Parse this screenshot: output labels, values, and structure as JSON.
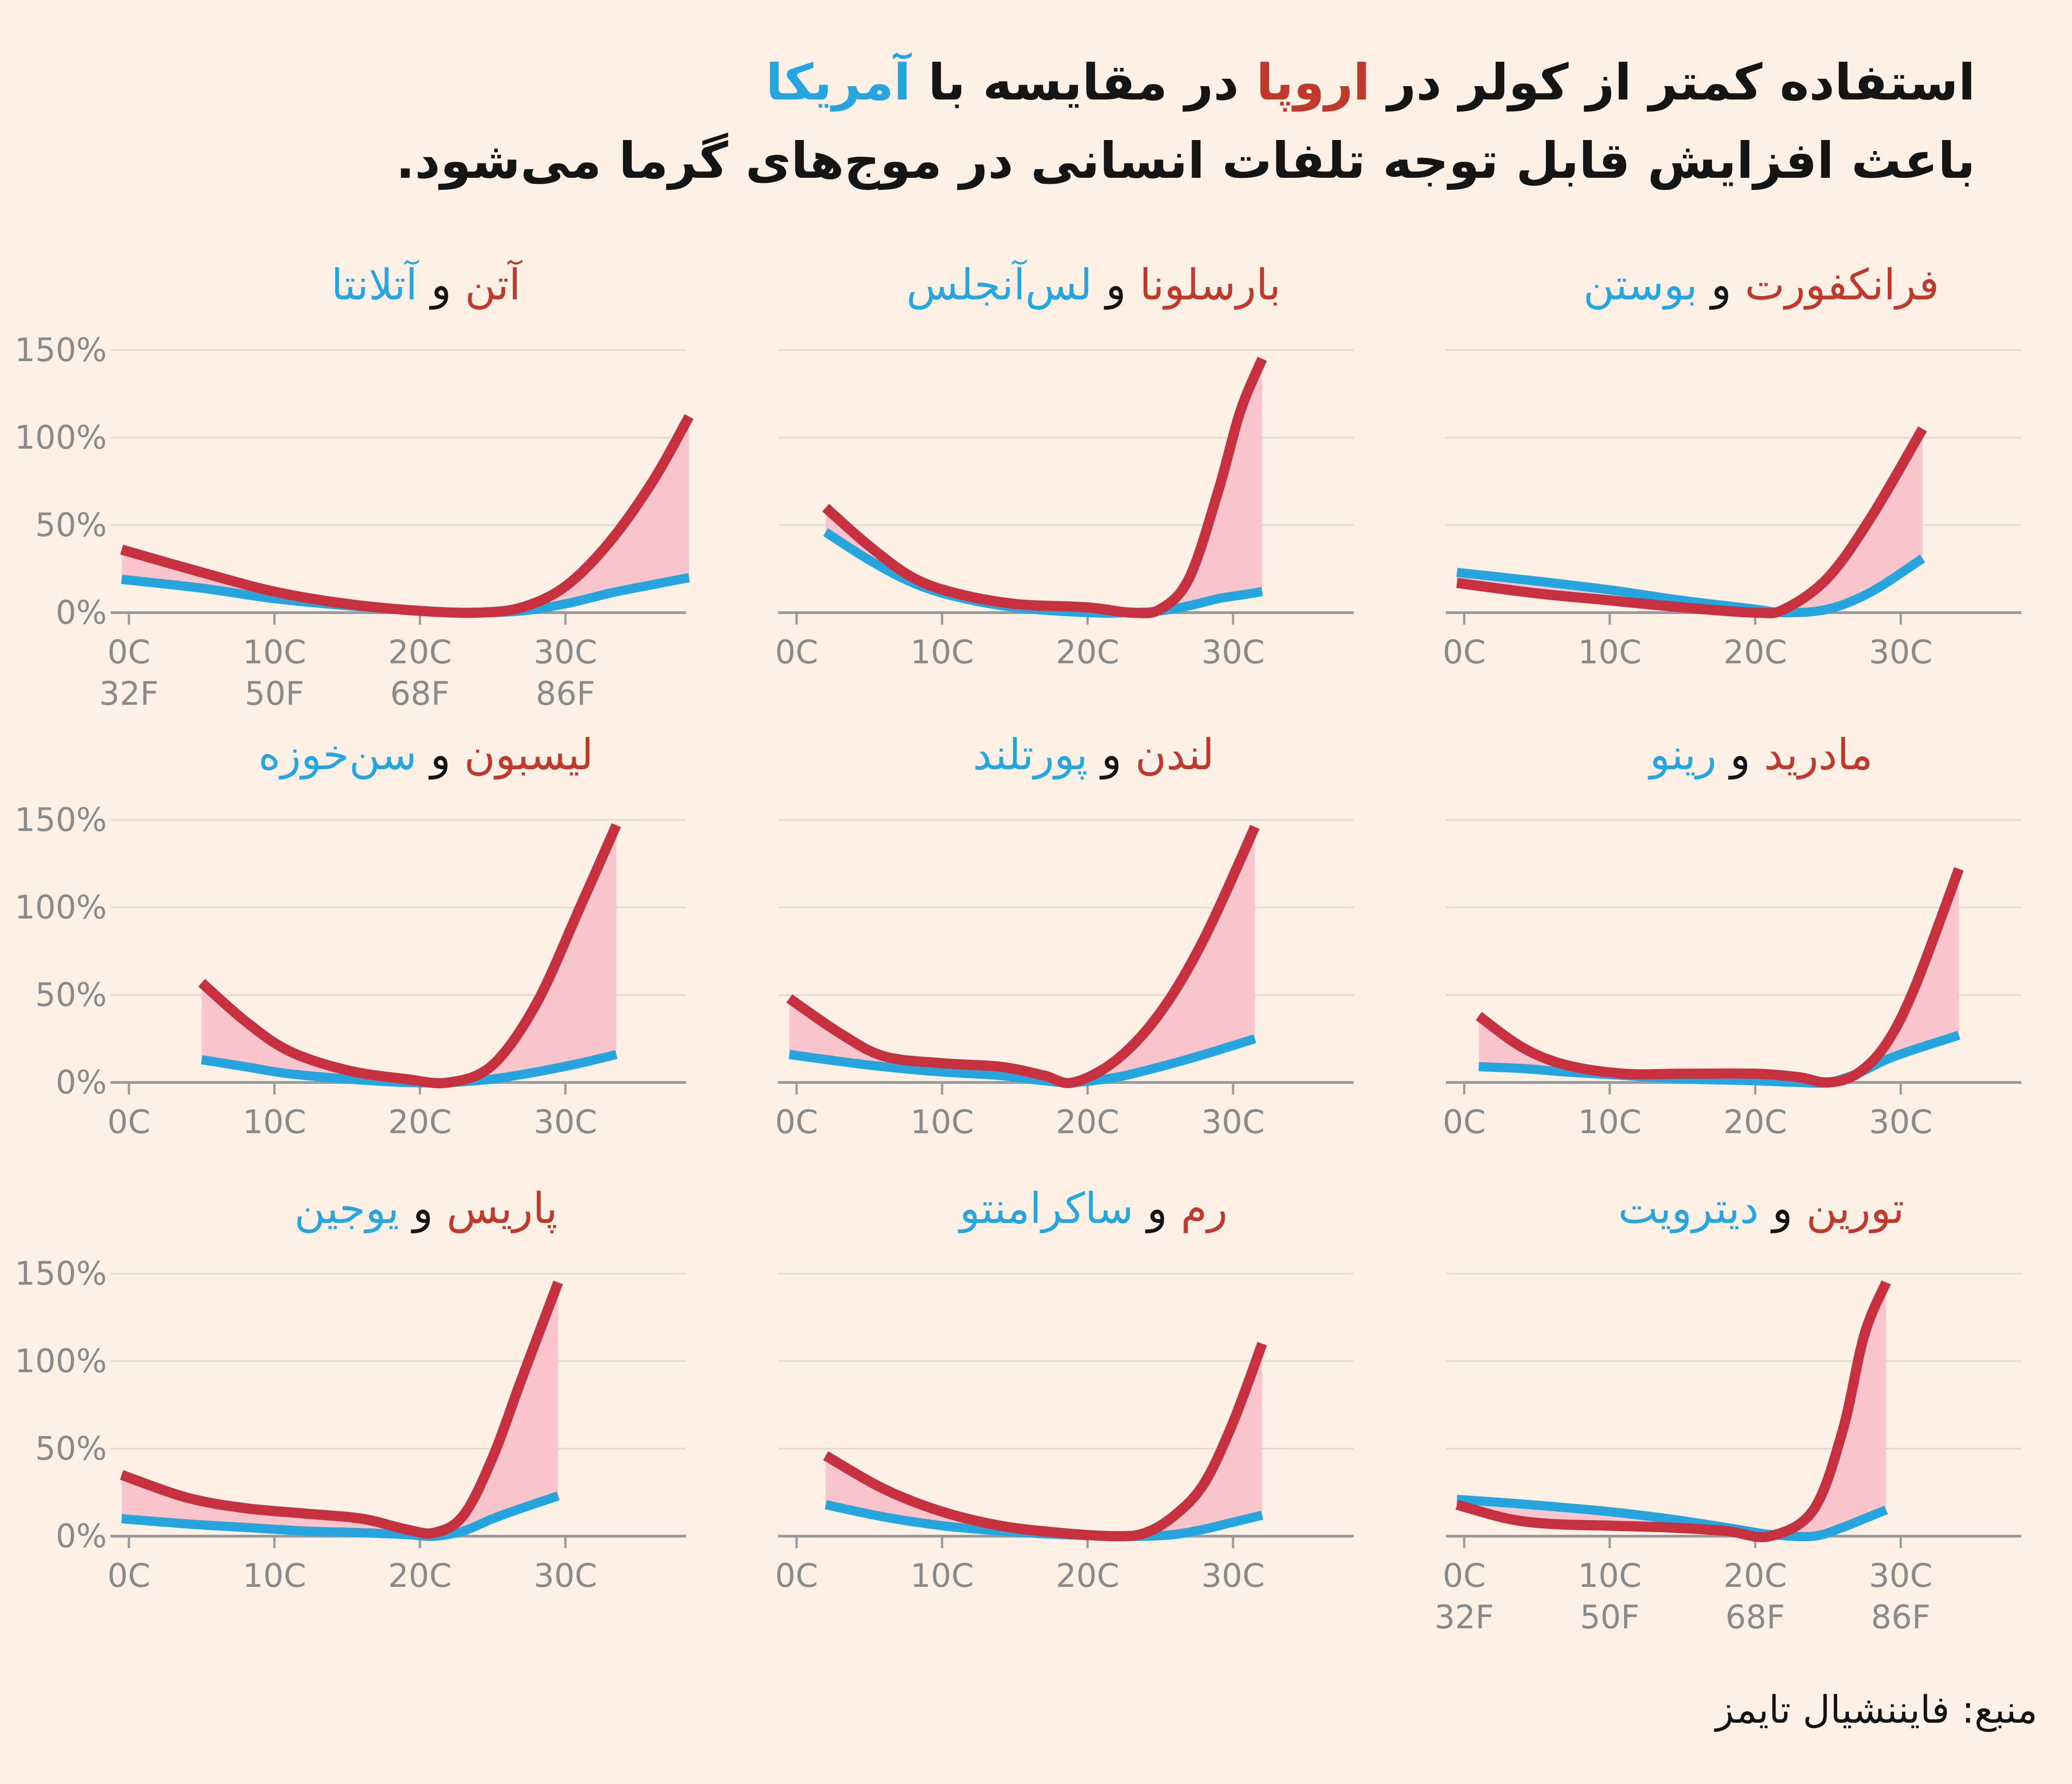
{
  "title": {
    "line1_pre": "استفاده کمتر از کولر در ",
    "line1_eu": "اروپا",
    "line1_mid": " در مقایسه با ",
    "line1_us": "آمریکا",
    "line2": "باعث افزایش قابل توجه تلفات انسانی در موج‌های گرما می‌شود."
  },
  "source": "منبع: فایننشیال تایمز",
  "colors": {
    "europe": "#c0392b",
    "europe_line": "#c7303f",
    "us": "#27a5de",
    "gap_fill": "#f8c6cc",
    "grid": "#e5dbd1",
    "axis": "#9a9a9a",
    "tick": "#8a8a8a"
  },
  "chart_data": [
    {
      "type": "line",
      "title_eu": "آتن",
      "and": " و ",
      "title_us": "آتلانتا",
      "y_ticks": [
        "150%",
        "100%",
        "50%",
        "0%"
      ],
      "ylim": [
        0,
        150
      ],
      "y_tick_values": [
        150,
        100,
        50,
        0
      ],
      "x_ticks": [
        "0C",
        "10C",
        "20C",
        "30C"
      ],
      "x_tick_values": [
        0,
        10,
        20,
        30
      ],
      "x_ticks_f": [
        "32F",
        "50F",
        "68F",
        "86F"
      ],
      "series": [
        {
          "name": "آتن",
          "x": [
            -0.5,
            5,
            10,
            15,
            20,
            24,
            27,
            30,
            33,
            36,
            38.5
          ],
          "values": [
            36,
            23,
            12,
            5,
            1,
            0,
            3,
            15,
            40,
            75,
            112
          ]
        },
        {
          "name": "آتلانتا",
          "x": [
            -0.5,
            5,
            10,
            15,
            20,
            24,
            27,
            30,
            33,
            36,
            38.5
          ],
          "values": [
            19,
            14,
            8,
            4,
            1,
            0,
            1,
            5,
            11,
            16,
            20
          ]
        }
      ]
    },
    {
      "type": "line",
      "title_eu": "بارسلونا",
      "and": " و ",
      "title_us": "لس‌آنجلس",
      "y_ticks": [
        "150%",
        "100%",
        "50%",
        "0%"
      ],
      "ylim": [
        0,
        150
      ],
      "y_tick_values": [
        150,
        100,
        50,
        0
      ],
      "x_ticks": [
        "0C",
        "10C",
        "20C",
        "30C"
      ],
      "x_tick_values": [
        0,
        10,
        20,
        30
      ],
      "x_ticks_f": [],
      "series": [
        {
          "name": "بارسلونا",
          "x": [
            2,
            5,
            8,
            11,
            15,
            20,
            23,
            25,
            27,
            29,
            30.5,
            32
          ],
          "values": [
            60,
            38,
            20,
            11,
            5,
            3,
            0,
            2,
            20,
            70,
            115,
            145
          ]
        },
        {
          "name": "لس‌آنجلس",
          "x": [
            2,
            5,
            8,
            11,
            15,
            20,
            23,
            25,
            27,
            29,
            30.5,
            32
          ],
          "values": [
            46,
            30,
            17,
            9,
            3,
            0,
            0,
            1,
            4,
            8,
            10,
            12
          ]
        }
      ]
    },
    {
      "type": "line",
      "title_eu": "فرانکفورت",
      "and": " و ",
      "title_us": "بوستن",
      "y_ticks": [
        "150%",
        "100%",
        "50%",
        "0%"
      ],
      "ylim": [
        0,
        150
      ],
      "y_tick_values": [
        150,
        100,
        50,
        0
      ],
      "x_ticks": [
        "0C",
        "10C",
        "20C",
        "30C"
      ],
      "x_tick_values": [
        0,
        10,
        20,
        30
      ],
      "x_ticks_f": [],
      "series": [
        {
          "name": "فرانکفورت",
          "x": [
            -0.5,
            5,
            10,
            15,
            20,
            22,
            25,
            28,
            31.5
          ],
          "values": [
            17,
            11,
            7,
            3,
            0,
            2,
            20,
            55,
            105
          ]
        },
        {
          "name": "بوستن",
          "x": [
            -0.5,
            5,
            10,
            15,
            20,
            22,
            25,
            28,
            31.5
          ],
          "values": [
            23,
            18,
            13,
            7,
            2,
            0,
            2,
            12,
            31
          ]
        }
      ]
    },
    {
      "type": "line",
      "title_eu": "لیسبون",
      "and": " و ",
      "title_us": "سن‌خوزه",
      "y_ticks": [
        "150%",
        "100%",
        "50%",
        "0%"
      ],
      "ylim": [
        0,
        150
      ],
      "y_tick_values": [
        150,
        100,
        50,
        0
      ],
      "x_ticks": [
        "0C",
        "10C",
        "20C",
        "30C"
      ],
      "x_tick_values": [
        0,
        10,
        20,
        30
      ],
      "x_ticks_f": [],
      "series": [
        {
          "name": "لیسبون",
          "x": [
            5,
            8,
            11,
            15,
            19,
            22,
            25,
            28,
            31,
            33.5
          ],
          "values": [
            57,
            35,
            18,
            7,
            2,
            0,
            10,
            45,
            100,
            147
          ]
        },
        {
          "name": "سن‌خوزه",
          "x": [
            5,
            8,
            11,
            15,
            19,
            22,
            25,
            28,
            31,
            33.5
          ],
          "values": [
            13,
            9,
            5,
            2,
            0,
            0,
            2,
            6,
            11,
            16
          ]
        }
      ]
    },
    {
      "type": "line",
      "title_eu": "لندن",
      "and": " و ",
      "title_us": "پورتلند",
      "y_ticks": [
        "150%",
        "100%",
        "50%",
        "0%"
      ],
      "ylim": [
        0,
        150
      ],
      "y_tick_values": [
        150,
        100,
        50,
        0
      ],
      "x_ticks": [
        "0C",
        "10C",
        "20C",
        "30C"
      ],
      "x_tick_values": [
        0,
        10,
        20,
        30
      ],
      "x_ticks_f": [],
      "series": [
        {
          "name": "لندن",
          "x": [
            -0.5,
            3,
            6,
            10,
            14,
            17,
            19,
            22,
            25,
            28,
            31.5
          ],
          "values": [
            48,
            28,
            15,
            11,
            9,
            4,
            0,
            13,
            40,
            82,
            146
          ]
        },
        {
          "name": "پورتلند",
          "x": [
            -0.5,
            3,
            6,
            10,
            14,
            17,
            19,
            22,
            25,
            28,
            31.5
          ],
          "values": [
            16,
            12,
            9,
            6,
            4,
            1,
            0,
            3,
            9,
            16,
            25
          ]
        }
      ]
    },
    {
      "type": "line",
      "title_eu": "مادرید",
      "and": " و ",
      "title_us": "رینو",
      "y_ticks": [
        "150%",
        "100%",
        "50%",
        "0%"
      ],
      "ylim": [
        0,
        150
      ],
      "y_tick_values": [
        150,
        100,
        50,
        0
      ],
      "x_ticks": [
        "0C",
        "10C",
        "20C",
        "30C"
      ],
      "x_tick_values": [
        0,
        10,
        20,
        30
      ],
      "x_ticks_f": [],
      "series": [
        {
          "name": "مادرید",
          "x": [
            1,
            4,
            7,
            11,
            15,
            20,
            23,
            25,
            27,
            29,
            31,
            34
          ],
          "values": [
            38,
            20,
            10,
            5,
            5,
            5,
            3,
            0,
            5,
            22,
            55,
            122
          ]
        },
        {
          "name": "رینو",
          "x": [
            1,
            4,
            7,
            11,
            15,
            20,
            23,
            25,
            27,
            29,
            31,
            34
          ],
          "values": [
            9,
            8,
            6,
            4,
            2,
            1,
            0,
            0,
            5,
            13,
            19,
            27
          ]
        }
      ]
    },
    {
      "type": "line",
      "title_eu": "پاریس",
      "and": " و ",
      "title_us": "یوجین",
      "y_ticks": [
        "150%",
        "100%",
        "50%",
        "0%"
      ],
      "ylim": [
        0,
        150
      ],
      "y_tick_values": [
        150,
        100,
        50,
        0
      ],
      "x_ticks": [
        "0C",
        "10C",
        "20C",
        "30C"
      ],
      "x_tick_values": [
        0,
        10,
        20,
        30
      ],
      "x_ticks_f": [],
      "series": [
        {
          "name": "پاریس",
          "x": [
            -0.5,
            4,
            8,
            12,
            16,
            19,
            21,
            23,
            25,
            27,
            29.5
          ],
          "values": [
            35,
            22,
            16,
            13,
            10,
            4,
            2,
            12,
            45,
            90,
            145
          ]
        },
        {
          "name": "یوجین",
          "x": [
            -0.5,
            4,
            8,
            12,
            16,
            19,
            21,
            23,
            25,
            27,
            29.5
          ],
          "values": [
            10,
            7,
            5,
            3,
            2,
            1,
            0,
            3,
            10,
            16,
            23
          ]
        }
      ]
    },
    {
      "type": "line",
      "title_eu": "رم",
      "and": " و ",
      "title_us": "ساکرامنتو",
      "y_ticks": [
        "150%",
        "100%",
        "50%",
        "0%"
      ],
      "ylim": [
        0,
        150
      ],
      "y_tick_values": [
        150,
        100,
        50,
        0
      ],
      "x_ticks": [
        "0C",
        "10C",
        "20C",
        "30C"
      ],
      "x_tick_values": [
        0,
        10,
        20,
        30
      ],
      "x_ticks_f": [],
      "series": [
        {
          "name": "رم",
          "x": [
            2,
            6,
            10,
            14,
            18,
            22,
            24,
            26,
            28,
            30,
            32
          ],
          "values": [
            46,
            27,
            14,
            6,
            2,
            0,
            2,
            12,
            30,
            65,
            110
          ]
        },
        {
          "name": "ساکرامنتو",
          "x": [
            2,
            6,
            10,
            14,
            18,
            22,
            24,
            26,
            28,
            30,
            32
          ],
          "values": [
            18,
            11,
            6,
            3,
            1,
            0,
            0,
            1,
            4,
            8,
            12
          ]
        }
      ]
    },
    {
      "type": "line",
      "title_eu": "تورین",
      "and": " و ",
      "title_us": "دیترویت",
      "y_ticks": [
        "150%",
        "100%",
        "50%",
        "0%"
      ],
      "ylim": [
        0,
        150
      ],
      "y_tick_values": [
        150,
        100,
        50,
        0
      ],
      "x_ticks": [
        "0C",
        "10C",
        "20C",
        "30C"
      ],
      "x_tick_values": [
        0,
        10,
        20,
        30
      ],
      "x_ticks_f": [
        "32F",
        "50F",
        "68F",
        "86F"
      ],
      "series": [
        {
          "name": "تورین",
          "x": [
            -0.5,
            3,
            6,
            10,
            14,
            18,
            21,
            24,
            26,
            27.5,
            29
          ],
          "values": [
            18,
            10,
            7,
            6,
            5,
            3,
            0,
            15,
            60,
            115,
            145
          ]
        },
        {
          "name": "دیترویت",
          "x": [
            -0.5,
            3,
            6,
            10,
            14,
            18,
            21,
            24,
            26,
            27.5,
            29
          ],
          "values": [
            21,
            19,
            17,
            14,
            10,
            5,
            1,
            0,
            5,
            10,
            15
          ]
        }
      ]
    }
  ]
}
